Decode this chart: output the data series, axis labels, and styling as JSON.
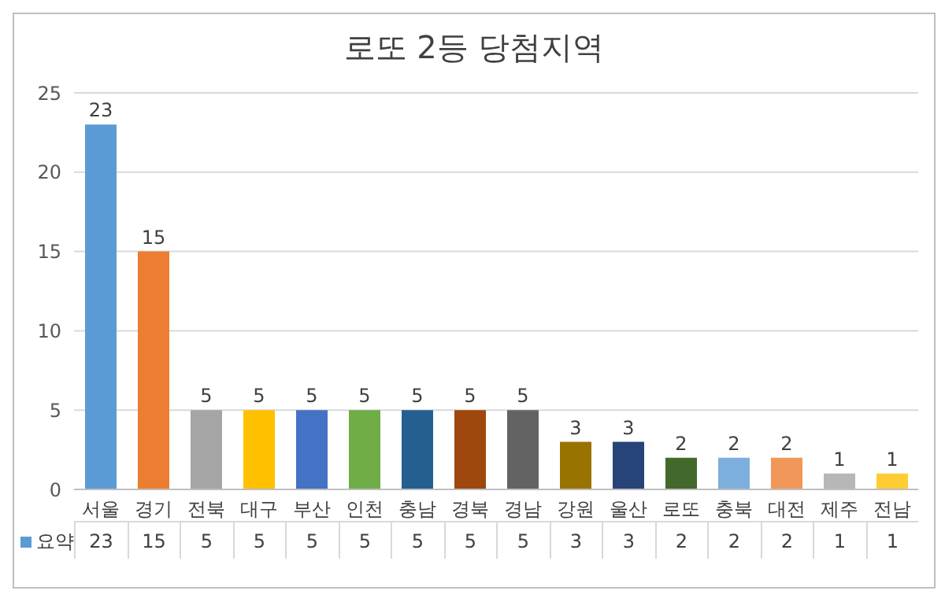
{
  "chart_data": {
    "type": "bar",
    "title": "로또 2등 당첨지역",
    "categories": [
      "서울",
      "경기",
      "전북",
      "대구",
      "부산",
      "인천",
      "충남",
      "경북",
      "경남",
      "강원",
      "울산",
      "로또",
      "충북",
      "대전",
      "제주",
      "전남"
    ],
    "series": [
      {
        "name": "요약",
        "color": "#5b9bd5",
        "values": [
          23,
          15,
          5,
          5,
          5,
          5,
          5,
          5,
          5,
          3,
          3,
          2,
          2,
          2,
          1,
          1
        ],
        "value_labels": [
          "23",
          "15",
          "5",
          "5",
          "5",
          "5",
          "5",
          "5",
          "5",
          "3",
          "3",
          "2",
          "2",
          "2",
          "1",
          "1"
        ],
        "colors": [
          "#5b9bd5",
          "#ed7d31",
          "#a5a5a5",
          "#ffc000",
          "#4472c4",
          "#70ad47",
          "#255e91",
          "#9e480e",
          "#636363",
          "#997300",
          "#264478",
          "#43682b",
          "#7cafdd",
          "#f1975a",
          "#b7b7b7",
          "#ffcd33"
        ]
      }
    ],
    "annotations": [
      "23",
      "15",
      "5",
      "5",
      "5",
      "5",
      "5",
      "5",
      "5",
      "3",
      "3",
      "2",
      "2",
      "2",
      "1",
      "1"
    ],
    "ylim": [
      0,
      25
    ],
    "yticks": [
      0,
      5,
      10,
      15,
      20,
      25
    ],
    "grid": "y",
    "legend": "bottom",
    "data_labels": true
  }
}
